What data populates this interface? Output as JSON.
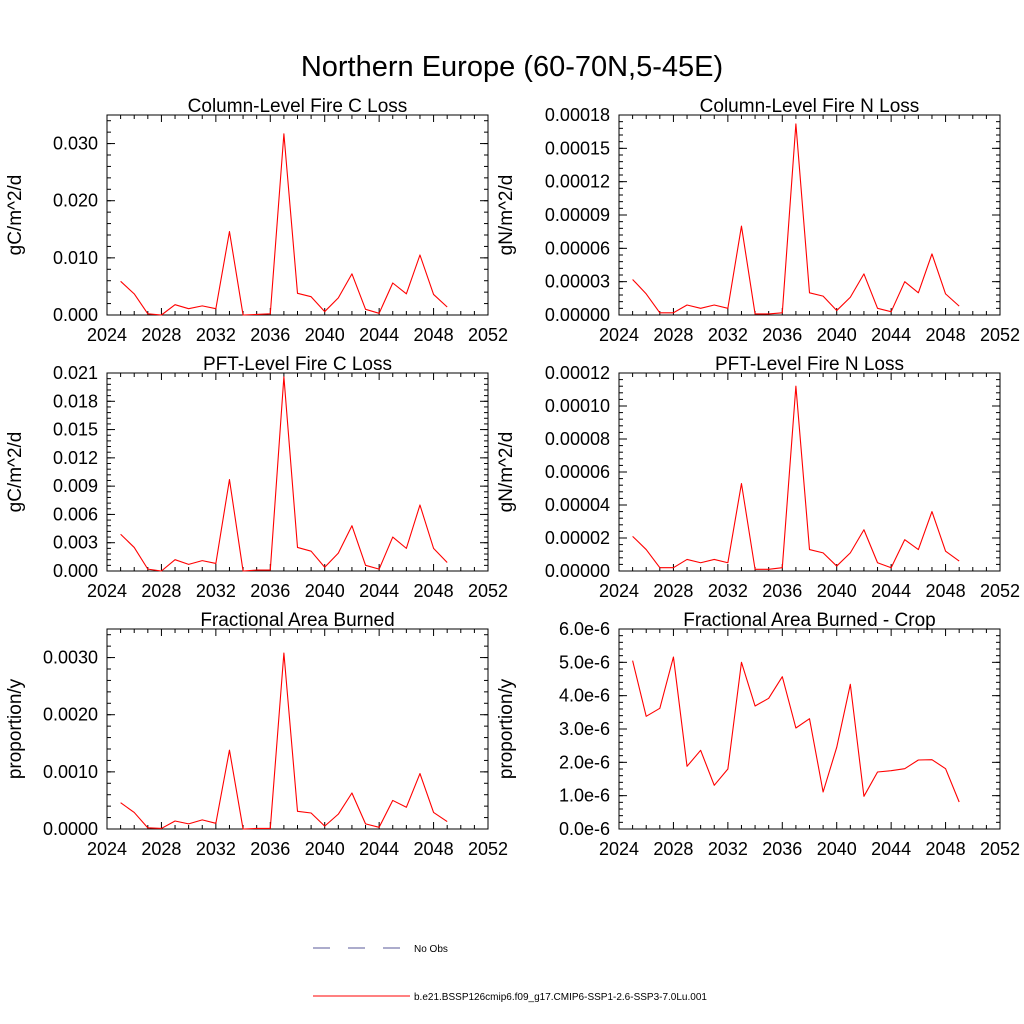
{
  "title": "Northern Europe (60-70N,5-45E)",
  "legend": {
    "placement": "bottom-center",
    "entries": [
      {
        "label": "No Obs",
        "color": "#5a5a9a",
        "style": "dashed"
      },
      {
        "label": "b.e21.BSSP126cmip6.f09_g17.CMIP6-SSP1-2.6-SSP3-7.0Lu.001",
        "color": "#ff0000",
        "style": "solid"
      }
    ]
  },
  "chart_data": [
    {
      "type": "line",
      "title": "Column-Level Fire C Loss",
      "ylabel": "gC/m^2/d",
      "xlim": [
        2024,
        2052
      ],
      "ylim": [
        0,
        0.035
      ],
      "xticks": [
        "2024",
        "2028",
        "2032",
        "2036",
        "2040",
        "2044",
        "2048",
        "2052"
      ],
      "yticks": [
        {
          "v": 0,
          "label": "0.000"
        },
        {
          "v": 0.01,
          "label": "0.010"
        },
        {
          "v": 0.02,
          "label": "0.020"
        },
        {
          "v": 0.03,
          "label": "0.030"
        }
      ],
      "x": [
        2025,
        2026,
        2027,
        2028,
        2029,
        2030,
        2031,
        2032,
        2033,
        2034,
        2035,
        2036,
        2037,
        2038,
        2039,
        2040,
        2041,
        2042,
        2043,
        2044,
        2045,
        2046,
        2047,
        2048,
        2049
      ],
      "series": [
        {
          "color": "#ff0000",
          "values": [
            0.0059,
            0.0037,
            0.0002,
            0.0,
            0.0018,
            0.0011,
            0.0016,
            0.0011,
            0.0146,
            0.0,
            0.0001,
            0.0002,
            0.0317,
            0.0038,
            0.0032,
            0.0006,
            0.003,
            0.0072,
            0.001,
            0.0003,
            0.0056,
            0.0037,
            0.0105,
            0.0036,
            0.0014
          ]
        }
      ]
    },
    {
      "type": "line",
      "title": "Column-Level Fire N Loss",
      "ylabel": "gN/m^2/d",
      "xlim": [
        2024,
        2052
      ],
      "ylim": [
        0,
        0.00018
      ],
      "xticks": [
        "2024",
        "2028",
        "2032",
        "2036",
        "2040",
        "2044",
        "2048",
        "2052"
      ],
      "yticks": [
        {
          "v": 0,
          "label": "0.00000"
        },
        {
          "v": 3e-05,
          "label": "0.00003"
        },
        {
          "v": 6e-05,
          "label": "0.00006"
        },
        {
          "v": 9e-05,
          "label": "0.00009"
        },
        {
          "v": 0.00012,
          "label": "0.00012"
        },
        {
          "v": 0.00015,
          "label": "0.00015"
        },
        {
          "v": 0.00018,
          "label": "0.00018"
        }
      ],
      "x": [
        2025,
        2026,
        2027,
        2028,
        2029,
        2030,
        2031,
        2032,
        2033,
        2034,
        2035,
        2036,
        2037,
        2038,
        2039,
        2040,
        2041,
        2042,
        2043,
        2044,
        2045,
        2046,
        2047,
        2048,
        2049
      ],
      "series": [
        {
          "color": "#ff0000",
          "values": [
            3.2e-05,
            1.9e-05,
            2e-06,
            2e-06,
            9e-06,
            6e-06,
            9e-06,
            6e-06,
            8e-05,
            1e-06,
            1e-06,
            2e-06,
            0.000172,
            2e-05,
            1.7e-05,
            4e-06,
            1.6e-05,
            3.7e-05,
            6e-06,
            3e-06,
            3e-05,
            2e-05,
            5.5e-05,
            1.9e-05,
            8e-06
          ]
        }
      ]
    },
    {
      "type": "line",
      "title": "PFT-Level Fire C Loss",
      "ylabel": "gC/m^2/d",
      "xlim": [
        2024,
        2052
      ],
      "ylim": [
        0,
        0.021
      ],
      "xticks": [
        "2024",
        "2028",
        "2032",
        "2036",
        "2040",
        "2044",
        "2048",
        "2052"
      ],
      "yticks": [
        {
          "v": 0,
          "label": "0.000"
        },
        {
          "v": 0.003,
          "label": "0.003"
        },
        {
          "v": 0.006,
          "label": "0.006"
        },
        {
          "v": 0.009,
          "label": "0.009"
        },
        {
          "v": 0.012,
          "label": "0.012"
        },
        {
          "v": 0.015,
          "label": "0.015"
        },
        {
          "v": 0.018,
          "label": "0.018"
        },
        {
          "v": 0.021,
          "label": "0.021"
        }
      ],
      "x": [
        2025,
        2026,
        2027,
        2028,
        2029,
        2030,
        2031,
        2032,
        2033,
        2034,
        2035,
        2036,
        2037,
        2038,
        2039,
        2040,
        2041,
        2042,
        2043,
        2044,
        2045,
        2046,
        2047,
        2048,
        2049
      ],
      "series": [
        {
          "color": "#ff0000",
          "values": [
            0.0039,
            0.0025,
            0.0002,
            0.0,
            0.0012,
            0.0007,
            0.0011,
            0.0008,
            0.0097,
            0.0,
            0.0001,
            0.0001,
            0.0206,
            0.0025,
            0.0021,
            0.0004,
            0.0019,
            0.0048,
            0.0006,
            0.0002,
            0.0036,
            0.0024,
            0.007,
            0.0024,
            0.0009
          ]
        }
      ]
    },
    {
      "type": "line",
      "title": "PFT-Level Fire N Loss",
      "ylabel": "gN/m^2/d",
      "xlim": [
        2024,
        2052
      ],
      "ylim": [
        0,
        0.00012
      ],
      "xticks": [
        "2024",
        "2028",
        "2032",
        "2036",
        "2040",
        "2044",
        "2048",
        "2052"
      ],
      "yticks": [
        {
          "v": 0,
          "label": "0.00000"
        },
        {
          "v": 2e-05,
          "label": "0.00002"
        },
        {
          "v": 4e-05,
          "label": "0.00004"
        },
        {
          "v": 6e-05,
          "label": "0.00006"
        },
        {
          "v": 8e-05,
          "label": "0.00008"
        },
        {
          "v": 0.0001,
          "label": "0.00010"
        },
        {
          "v": 0.00012,
          "label": "0.00012"
        }
      ],
      "x": [
        2025,
        2026,
        2027,
        2028,
        2029,
        2030,
        2031,
        2032,
        2033,
        2034,
        2035,
        2036,
        2037,
        2038,
        2039,
        2040,
        2041,
        2042,
        2043,
        2044,
        2045,
        2046,
        2047,
        2048,
        2049
      ],
      "series": [
        {
          "color": "#ff0000",
          "values": [
            2.1e-05,
            1.3e-05,
            2e-06,
            2e-06,
            7e-06,
            5e-06,
            7e-06,
            5e-06,
            5.3e-05,
            1e-06,
            1e-06,
            2e-06,
            0.000112,
            1.3e-05,
            1.1e-05,
            3e-06,
            1.1e-05,
            2.5e-05,
            5e-06,
            2e-06,
            1.9e-05,
            1.3e-05,
            3.6e-05,
            1.2e-05,
            6e-06
          ]
        }
      ]
    },
    {
      "type": "line",
      "title": "Fractional Area Burned",
      "ylabel": "proportion/y",
      "xlim": [
        2024,
        2052
      ],
      "ylim": [
        0,
        0.0035
      ],
      "xticks": [
        "2024",
        "2028",
        "2032",
        "2036",
        "2040",
        "2044",
        "2048",
        "2052"
      ],
      "yticks": [
        {
          "v": 0,
          "label": "0.0000"
        },
        {
          "v": 0.001,
          "label": "0.0010"
        },
        {
          "v": 0.002,
          "label": "0.0020"
        },
        {
          "v": 0.003,
          "label": "0.0030"
        }
      ],
      "x": [
        2025,
        2026,
        2027,
        2028,
        2029,
        2030,
        2031,
        2032,
        2033,
        2034,
        2035,
        2036,
        2037,
        2038,
        2039,
        2040,
        2041,
        2042,
        2043,
        2044,
        2045,
        2046,
        2047,
        2048,
        2049
      ],
      "series": [
        {
          "color": "#ff0000",
          "values": [
            0.00046,
            0.00029,
            2e-05,
            1e-05,
            0.00014,
            9e-05,
            0.00016,
            0.0001,
            0.00138,
            0.0,
            1e-05,
            1e-05,
            0.00308,
            0.00031,
            0.00028,
            5e-05,
            0.00026,
            0.00063,
            9e-05,
            3e-05,
            0.0005,
            0.00038,
            0.00097,
            0.00029,
            0.00013
          ]
        }
      ]
    },
    {
      "type": "line",
      "title": "Fractional Area Burned - Crop",
      "ylabel": "proportion/y",
      "xlim": [
        2024,
        2052
      ],
      "ylim": [
        0,
        6e-06
      ],
      "xticks": [
        "2024",
        "2028",
        "2032",
        "2036",
        "2040",
        "2044",
        "2048",
        "2052"
      ],
      "yticks": [
        {
          "v": 0,
          "label": "0.0e-6"
        },
        {
          "v": 1e-06,
          "label": "1.0e-6"
        },
        {
          "v": 2e-06,
          "label": "2.0e-6"
        },
        {
          "v": 3e-06,
          "label": "3.0e-6"
        },
        {
          "v": 4e-06,
          "label": "4.0e-6"
        },
        {
          "v": 5e-06,
          "label": "5.0e-6"
        },
        {
          "v": 6e-06,
          "label": "6.0e-6"
        }
      ],
      "x": [
        2025,
        2026,
        2027,
        2028,
        2029,
        2030,
        2031,
        2032,
        2033,
        2034,
        2035,
        2036,
        2037,
        2038,
        2039,
        2040,
        2041,
        2042,
        2043,
        2044,
        2045,
        2046,
        2047,
        2048,
        2049
      ],
      "series": [
        {
          "color": "#ff0000",
          "values": [
            5.05e-06,
            3.38e-06,
            3.62e-06,
            5.16e-06,
            1.88e-06,
            2.36e-06,
            1.31e-06,
            1.8e-06,
            5e-06,
            3.69e-06,
            3.92e-06,
            4.57e-06,
            3.03e-06,
            3.31e-06,
            1.11e-06,
            2.45e-06,
            4.34e-06,
            9.8e-07,
            1.71e-06,
            1.75e-06,
            1.81e-06,
            2.07e-06,
            2.08e-06,
            1.81e-06,
            8.1e-07
          ]
        }
      ]
    }
  ]
}
